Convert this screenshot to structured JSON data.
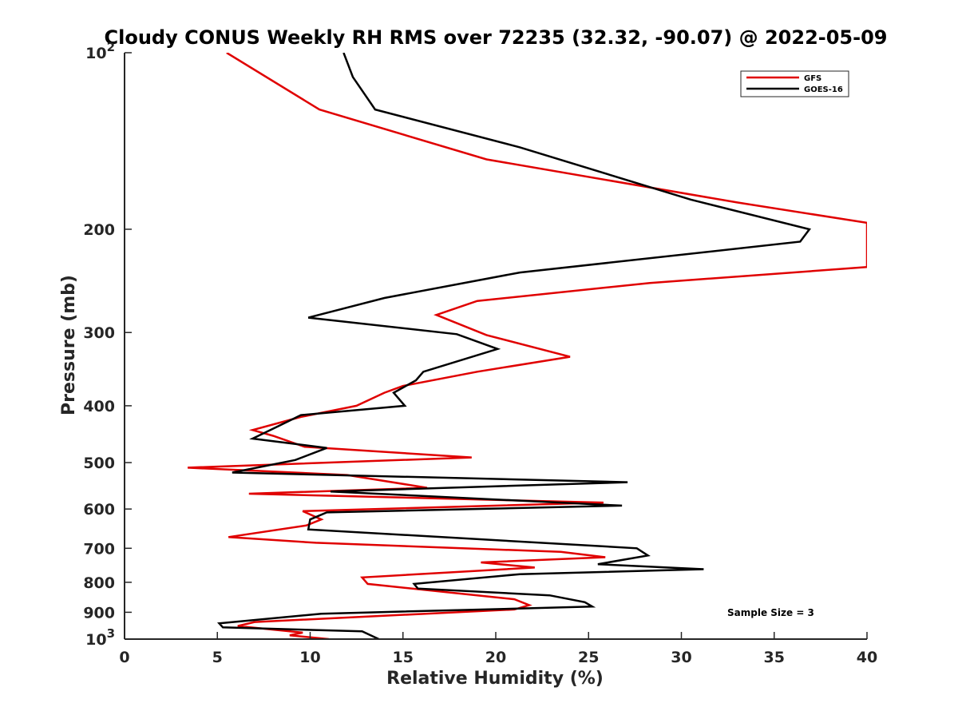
{
  "chart_data": {
    "type": "line",
    "title": "Cloudy CONUS Weekly RH RMS over 72235 (32.32, -90.07) @ 2022-05-09",
    "xlabel": "Relative Humidity (%)",
    "ylabel": "Pressure (mb)",
    "xlim": [
      0,
      40
    ],
    "ylim": [
      100,
      1000
    ],
    "yscale": "log",
    "y_reversed": true,
    "x_ticks": [
      {
        "value": 0,
        "label": "0"
      },
      {
        "value": 5,
        "label": "5"
      },
      {
        "value": 10,
        "label": "10"
      },
      {
        "value": 15,
        "label": "15"
      },
      {
        "value": 20,
        "label": "20"
      },
      {
        "value": 25,
        "label": "25"
      },
      {
        "value": 30,
        "label": "30"
      },
      {
        "value": 35,
        "label": "35"
      },
      {
        "value": 40,
        "label": "40"
      }
    ],
    "y_ticks": [
      {
        "value": 100,
        "base": "10",
        "exp": "2"
      },
      {
        "value": 200,
        "label": "200"
      },
      {
        "value": 300,
        "label": "300"
      },
      {
        "value": 400,
        "label": "400"
      },
      {
        "value": 500,
        "label": "500"
      },
      {
        "value": 600,
        "label": "600"
      },
      {
        "value": 700,
        "label": "700"
      },
      {
        "value": 800,
        "label": "800"
      },
      {
        "value": 900,
        "label": "900"
      },
      {
        "value": 1000,
        "base": "10",
        "exp": "3"
      }
    ],
    "legend_position": "top-right",
    "annotation": "Sample Size = 3",
    "series": [
      {
        "name": "GFS",
        "color": "#e00000",
        "points": [
          [
            5.5,
            100
          ],
          [
            10.5,
            125
          ],
          [
            19.5,
            152
          ],
          [
            33,
            180
          ],
          [
            40,
            195
          ],
          [
            40,
            232
          ],
          [
            28.3,
            247
          ],
          [
            19,
            265
          ],
          [
            16.8,
            280
          ],
          [
            19.5,
            303
          ],
          [
            24,
            330
          ],
          [
            19,
            350
          ],
          [
            15,
            370
          ],
          [
            14,
            380
          ],
          [
            12.5,
            400
          ],
          [
            9.5,
            418
          ],
          [
            6.9,
            440
          ],
          [
            8,
            450
          ],
          [
            9.7,
            470
          ],
          [
            18.7,
            490
          ],
          [
            3.4,
            510
          ],
          [
            12,
            525
          ],
          [
            16.3,
            552
          ],
          [
            6.7,
            565
          ],
          [
            25.8,
            585
          ],
          [
            9.6,
            605
          ],
          [
            10.6,
            625
          ],
          [
            9.8,
            640
          ],
          [
            5.6,
            670
          ],
          [
            10.3,
            685
          ],
          [
            23.5,
            710
          ],
          [
            25.9,
            725
          ],
          [
            19.2,
            740
          ],
          [
            22.1,
            755
          ],
          [
            12.8,
            785
          ],
          [
            13.1,
            805
          ],
          [
            21,
            855
          ],
          [
            21.8,
            875
          ],
          [
            21,
            890
          ],
          [
            7,
            935
          ],
          [
            6.1,
            950
          ],
          [
            9.6,
            975
          ],
          [
            8.9,
            985
          ],
          [
            11,
            1000
          ]
        ]
      },
      {
        "name": "GOES-16",
        "color": "#000000",
        "points": [
          [
            11.8,
            100
          ],
          [
            12.3,
            110
          ],
          [
            13.5,
            125
          ],
          [
            21.3,
            145
          ],
          [
            30.5,
            178
          ],
          [
            36.9,
            200
          ],
          [
            36.4,
            210
          ],
          [
            21.3,
            237
          ],
          [
            14,
            262
          ],
          [
            9.9,
            283
          ],
          [
            17.9,
            302
          ],
          [
            20.1,
            320
          ],
          [
            16.1,
            350
          ],
          [
            15.7,
            362
          ],
          [
            14.5,
            380
          ],
          [
            15.1,
            400
          ],
          [
            9.5,
            415
          ],
          [
            8.3,
            433
          ],
          [
            6.9,
            455
          ],
          [
            10.9,
            472
          ],
          [
            9.2,
            495
          ],
          [
            5.8,
            520
          ],
          [
            27.1,
            540
          ],
          [
            11.1,
            560
          ],
          [
            26.8,
            592
          ],
          [
            10.9,
            608
          ],
          [
            10,
            625
          ],
          [
            9.9,
            650
          ],
          [
            27.6,
            700
          ],
          [
            28.2,
            720
          ],
          [
            25.5,
            745
          ],
          [
            31.2,
            760
          ],
          [
            21.3,
            775
          ],
          [
            15.6,
            805
          ],
          [
            15.8,
            820
          ],
          [
            22.9,
            842
          ],
          [
            24.8,
            865
          ],
          [
            25.2,
            880
          ],
          [
            10.6,
            905
          ],
          [
            5.1,
            940
          ],
          [
            5.3,
            955
          ],
          [
            12.8,
            970
          ],
          [
            13.7,
            1000
          ]
        ]
      }
    ]
  }
}
